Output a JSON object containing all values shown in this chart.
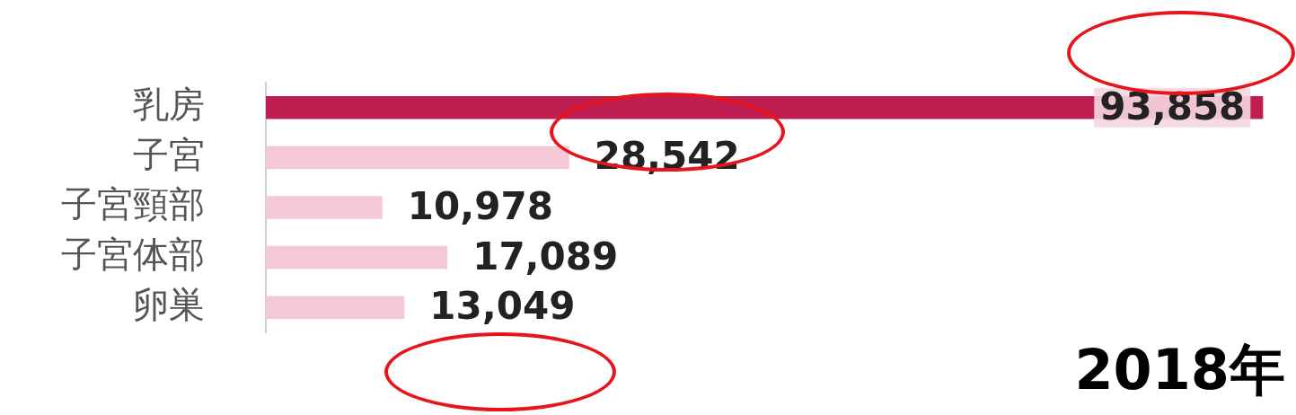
{
  "chart_data": {
    "type": "bar",
    "orientation": "horizontal",
    "categories": [
      "乳房",
      "子宮",
      "子宮頸部",
      "子宮体部",
      "卵巣"
    ],
    "values": [
      93858,
      28542,
      10978,
      17089,
      13049
    ],
    "colors": [
      "#be1e50",
      "#f5c8d6",
      "#f5c8d6",
      "#f5c8d6",
      "#f5c8d6"
    ],
    "value_labels": [
      "93,858",
      "28,542",
      "10,978",
      "17,089",
      "13,049"
    ],
    "grid": false,
    "legend": false,
    "annotations": [
      "2018年"
    ]
  }
}
